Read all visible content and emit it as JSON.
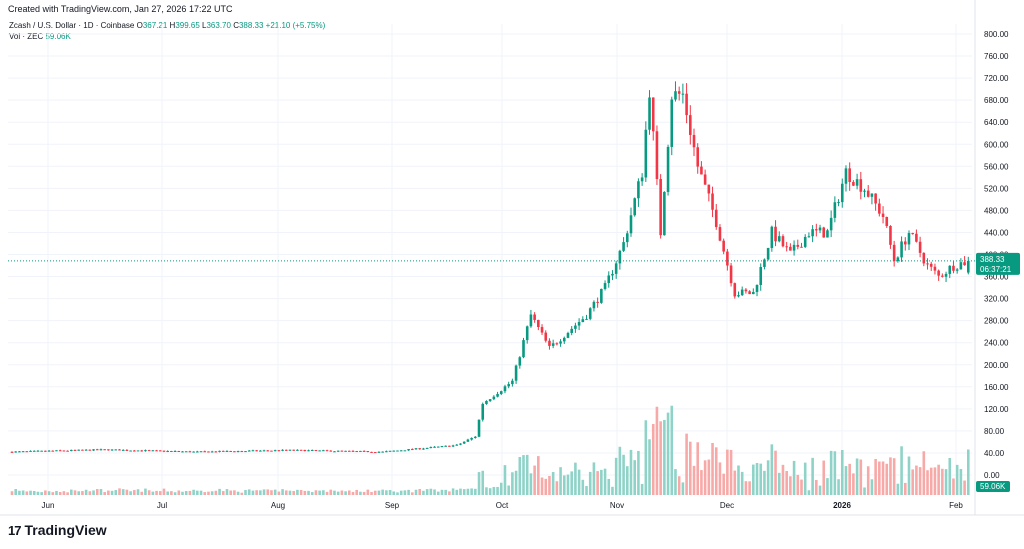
{
  "header": {
    "created": "Created with TradingView.com, Jan 27, 2026 17:22 UTC"
  },
  "legend": {
    "symbol": "Zcash / U.S. Dollar · 1D · Coinbase",
    "o_label": "O",
    "o": "367.21",
    "h_label": "H",
    "h": "399.65",
    "l_label": "L",
    "l": "363.70",
    "c_label": "C",
    "c": "388.33",
    "change": "+21.10 (+5.75%)"
  },
  "volume": {
    "label": "Vol · ZEC",
    "value": "59.06K"
  },
  "price_tag": {
    "price": "388.33",
    "countdown": "06:37:21"
  },
  "volume_tag": "59.06K",
  "brand": {
    "name": "TradingView"
  },
  "colors": {
    "up": "#089981",
    "down": "#f23645",
    "vol_up": "#8fd3c8",
    "vol_down": "#f7a9a7",
    "grid": "#f0f3fa"
  },
  "chart_data": {
    "type": "candlestick",
    "y_ticks": [
      "800.00",
      "760.00",
      "720.00",
      "680.00",
      "640.00",
      "600.00",
      "560.00",
      "520.00",
      "480.00",
      "440.00",
      "400.00",
      "360.00",
      "320.00",
      "280.00",
      "240.00",
      "200.00",
      "160.00",
      "120.00",
      "80.00",
      "40.00",
      "0.00"
    ],
    "ylim": [
      0,
      800
    ],
    "x_ticks": [
      "Jun",
      "Jul",
      "Aug",
      "Sep",
      "Oct",
      "Nov",
      "Dec",
      "2026",
      "Feb"
    ],
    "last_price": 388.33,
    "anchors": [
      [
        0,
        42
      ],
      [
        25,
        46
      ],
      [
        50,
        42
      ],
      [
        75,
        45
      ],
      [
        100,
        42
      ],
      [
        110,
        48
      ],
      [
        120,
        54
      ],
      [
        125,
        70
      ],
      [
        127,
        130
      ],
      [
        135,
        170
      ],
      [
        140,
        290
      ],
      [
        145,
        230
      ],
      [
        155,
        290
      ],
      [
        160,
        340
      ],
      [
        165,
        420
      ],
      [
        170,
        550
      ],
      [
        172,
        700
      ],
      [
        175,
        440
      ],
      [
        178,
        690
      ],
      [
        181,
        690
      ],
      [
        185,
        560
      ],
      [
        190,
        460
      ],
      [
        195,
        330
      ],
      [
        200,
        330
      ],
      [
        205,
        440
      ],
      [
        210,
        400
      ],
      [
        215,
        440
      ],
      [
        220,
        440
      ],
      [
        225,
        550
      ],
      [
        230,
        520
      ],
      [
        235,
        470
      ],
      [
        238,
        390
      ],
      [
        242,
        440
      ],
      [
        247,
        380
      ],
      [
        250,
        360
      ],
      [
        254,
        380
      ],
      [
        258,
        388.33
      ]
    ]
  }
}
